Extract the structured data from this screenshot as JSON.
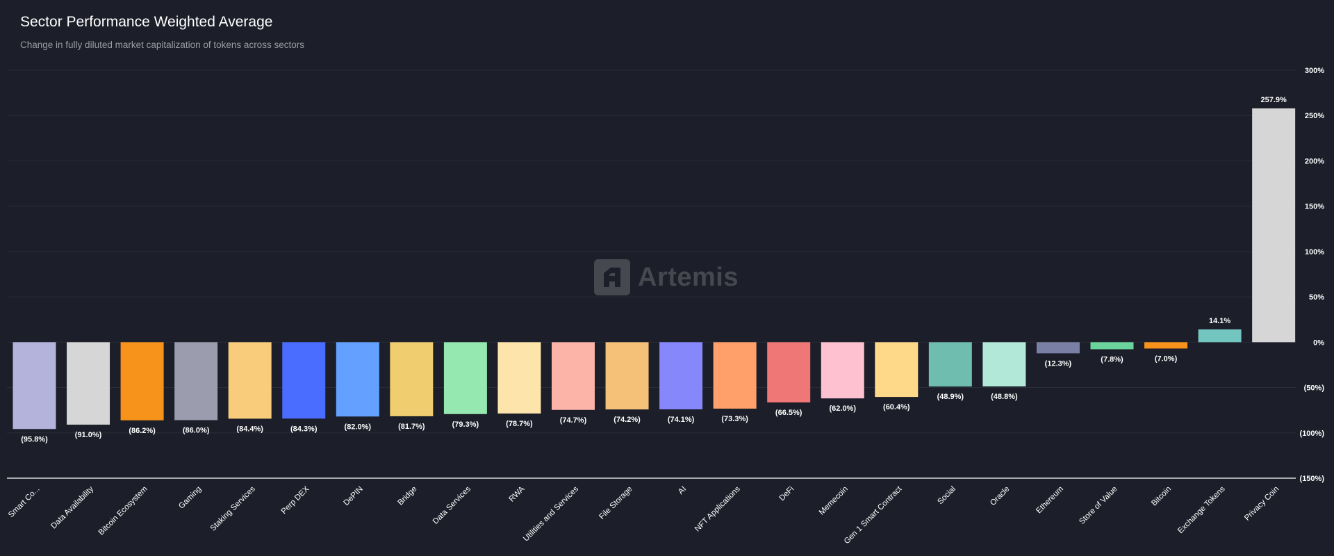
{
  "header": {
    "title": "Sector Performance Weighted Average",
    "subtitle": "Change in fully diluted market capitalization of tokens across sectors"
  },
  "watermark": {
    "text": "Artemis",
    "logo_icon": "artemis-logo-icon"
  },
  "colors": {
    "background": "#1c1e29",
    "gridline": "#2a2c38",
    "baseline": "#ffffff",
    "label": "#ffffff"
  },
  "chart_data": {
    "type": "bar",
    "title": "Sector Performance Weighted Average",
    "subtitle": "Change in fully diluted market capitalization of tokens across sectors",
    "xlabel": "",
    "ylabel": "",
    "ylim": [
      -150,
      300
    ],
    "y_axis_side": "right",
    "y_ticks": [
      300,
      250,
      200,
      150,
      100,
      50,
      0,
      -50,
      -100,
      -150
    ],
    "y_tick_labels": [
      "300%",
      "250%",
      "200%",
      "150%",
      "100%",
      "50%",
      "0%",
      "(50%)",
      "(100%)",
      "(150%)"
    ],
    "grid": true,
    "categories": [
      "Smart Co...",
      "Data Availability",
      "Bitcoin Ecosystem",
      "Gaming",
      "Staking Services",
      "Perp DEX",
      "DePIN",
      "Bridge",
      "Data Services",
      "RWA",
      "Utilities and Services",
      "File Storage",
      "AI",
      "NFT Applications",
      "DeFi",
      "Memecoin",
      "Gen 1 Smart Contract",
      "Social",
      "Oracle",
      "Ethereum",
      "Store of Value",
      "Bitcoin",
      "Exchange Tokens",
      "Privacy Coin"
    ],
    "values": [
      -95.8,
      -91.0,
      -86.2,
      -86.0,
      -84.4,
      -84.3,
      -82.0,
      -81.7,
      -79.3,
      -78.7,
      -74.7,
      -74.2,
      -74.1,
      -73.3,
      -66.5,
      -62.0,
      -60.4,
      -48.9,
      -48.8,
      -12.3,
      -7.8,
      -7.0,
      14.1,
      257.9
    ],
    "value_labels": [
      "(95.8%)",
      "(91.0%)",
      "(86.2%)",
      "(86.0%)",
      "(84.4%)",
      "(84.3%)",
      "(82.0%)",
      "(81.7%)",
      "(79.3%)",
      "(78.7%)",
      "(74.7%)",
      "(74.2%)",
      "(74.1%)",
      "(73.3%)",
      "(66.5%)",
      "(62.0%)",
      "(60.4%)",
      "(48.9%)",
      "(48.8%)",
      "(12.3%)",
      "(7.8%)",
      "(7.0%)",
      "14.1%",
      "257.9%"
    ],
    "bar_colors": [
      "#b3b3dc",
      "#d6d6d6",
      "#f7931a",
      "#9b9cad",
      "#f9cc7c",
      "#4a6cff",
      "#64a0ff",
      "#f0cd6e",
      "#94e8b0",
      "#fde4ab",
      "#fcb4a8",
      "#f5c078",
      "#8687fb",
      "#ffa06b",
      "#ef7877",
      "#fdc1cf",
      "#fed98a",
      "#6fbdaf",
      "#b2e8d8",
      "#7a80a5",
      "#6bd49c",
      "#f7931a",
      "#73c6bf",
      "#d6d6d6"
    ]
  }
}
